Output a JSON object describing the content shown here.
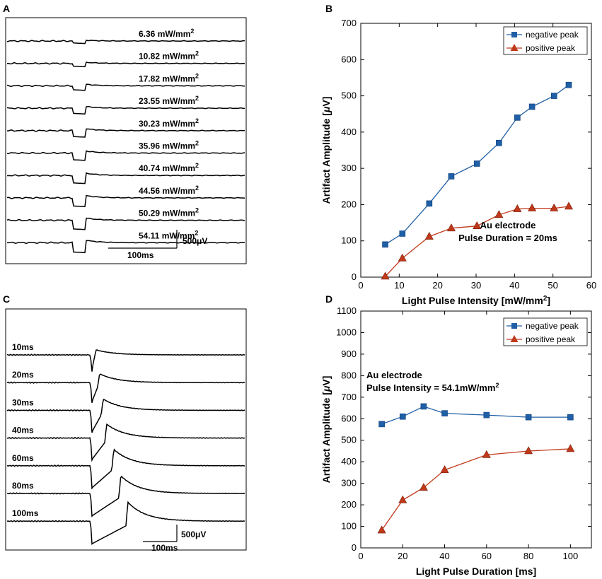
{
  "panels": {
    "A": {
      "letter": "A",
      "scale_time": "100ms",
      "scale_amp": "500μV"
    },
    "B": {
      "letter": "B"
    },
    "C": {
      "letter": "C",
      "scale_time": "100ms",
      "scale_amp": "500μV"
    },
    "D": {
      "letter": "D"
    }
  },
  "chart_data": [
    {
      "id": "A",
      "type": "line",
      "title": "",
      "description": "Stacked voltage traces of light artifact at increasing light pulse intensity",
      "traces": [
        {
          "label": "6.36 mW/mm",
          "sup": "2",
          "neg": 10,
          "pos": 4
        },
        {
          "label": "10.82 mW/mm",
          "sup": "2",
          "neg": 14,
          "pos": 6
        },
        {
          "label": "17.82 mW/mm",
          "sup": "2",
          "neg": 20,
          "pos": 8
        },
        {
          "label": "23.55 mW/mm",
          "sup": "2",
          "neg": 26,
          "pos": 9
        },
        {
          "label": "30.23 mW/mm",
          "sup": "2",
          "neg": 30,
          "pos": 10
        },
        {
          "label": "35.96 mW/mm",
          "sup": "2",
          "neg": 34,
          "pos": 11
        },
        {
          "label": "40.74 mW/mm",
          "sup": "2",
          "neg": 38,
          "pos": 12
        },
        {
          "label": "44.56 mW/mm",
          "sup": "2",
          "neg": 41,
          "pos": 12
        },
        {
          "label": "50.29 mW/mm",
          "sup": "2",
          "neg": 44,
          "pos": 12
        },
        {
          "label": "54.11 mW/mm",
          "sup": "2",
          "neg": 47,
          "pos": 13
        }
      ]
    },
    {
      "id": "B",
      "type": "line",
      "title": "",
      "xlabel": "Light Pulse Intensity [mW/mm",
      "xlabel_sup": "2",
      "xlabel_end": "]",
      "ylabel_pre": "Artifact Amplitude [",
      "ylabel_mu": "μ",
      "ylabel_post": "V]",
      "xlim": [
        0,
        60
      ],
      "ylim": [
        0,
        700
      ],
      "xticks": [
        0,
        10,
        20,
        30,
        40,
        50,
        60
      ],
      "yticks": [
        0,
        100,
        200,
        300,
        400,
        500,
        600,
        700
      ],
      "legend": "top-right",
      "annotation": [
        "Au electrode",
        "Pulse Duration = 20ms"
      ],
      "series": [
        {
          "name": "negative peak",
          "color": "#1f5fa6",
          "marker": "square",
          "x": [
            6.36,
            10.82,
            17.82,
            23.55,
            30.23,
            35.96,
            40.74,
            44.56,
            50.29,
            54.11
          ],
          "y": [
            90,
            120,
            203,
            278,
            313,
            370,
            440,
            470,
            500,
            530
          ]
        },
        {
          "name": "positive peak",
          "color": "#c0391b",
          "marker": "triangle",
          "x": [
            6.36,
            10.82,
            17.82,
            23.55,
            30.23,
            35.96,
            40.74,
            44.56,
            50.29,
            54.11
          ],
          "y": [
            2,
            52,
            112,
            135,
            141,
            172,
            188,
            190,
            190,
            195
          ]
        }
      ]
    },
    {
      "id": "C",
      "type": "line",
      "title": "",
      "description": "Stacked voltage traces of light artifact at increasing light pulse duration",
      "traces": [
        {
          "label": "10ms",
          "dur": 10,
          "neg": 30,
          "pos": 8
        },
        {
          "label": "20ms",
          "dur": 20,
          "neg": 32,
          "pos": 14
        },
        {
          "label": "30ms",
          "dur": 30,
          "neg": 34,
          "pos": 18
        },
        {
          "label": "40ms",
          "dur": 40,
          "neg": 33,
          "pos": 22
        },
        {
          "label": "60ms",
          "dur": 60,
          "neg": 33,
          "pos": 26
        },
        {
          "label": "80ms",
          "dur": 80,
          "neg": 33,
          "pos": 28
        },
        {
          "label": "100ms",
          "dur": 100,
          "neg": 33,
          "pos": 30
        }
      ]
    },
    {
      "id": "D",
      "type": "line",
      "title": "",
      "xlabel": "Light Pulse Duration [ms]",
      "ylabel_pre": "Artifact Amplitude [",
      "ylabel_mu": "μ",
      "ylabel_post": "V]",
      "xlim": [
        0,
        110
      ],
      "ylim": [
        0,
        1100
      ],
      "xticks": [
        0,
        20,
        40,
        60,
        80,
        100
      ],
      "yticks": [
        0,
        100,
        200,
        300,
        400,
        500,
        600,
        700,
        800,
        900,
        1000,
        1100
      ],
      "legend": "top-right",
      "annotation": [
        "Au electrode",
        "Pulse Intensity = 54.1mW/mm"
      ],
      "annotation_sup": "2",
      "series": [
        {
          "name": "negative peak",
          "color": "#1f5fa6",
          "marker": "square",
          "x": [
            10,
            20,
            30,
            40,
            60,
            80,
            100
          ],
          "y": [
            575,
            610,
            657,
            625,
            617,
            607,
            607
          ]
        },
        {
          "name": "positive peak",
          "color": "#c0391b",
          "marker": "triangle",
          "x": [
            10,
            20,
            30,
            40,
            60,
            80,
            100
          ],
          "y": [
            82,
            222,
            280,
            362,
            432,
            450,
            460
          ]
        }
      ]
    }
  ]
}
